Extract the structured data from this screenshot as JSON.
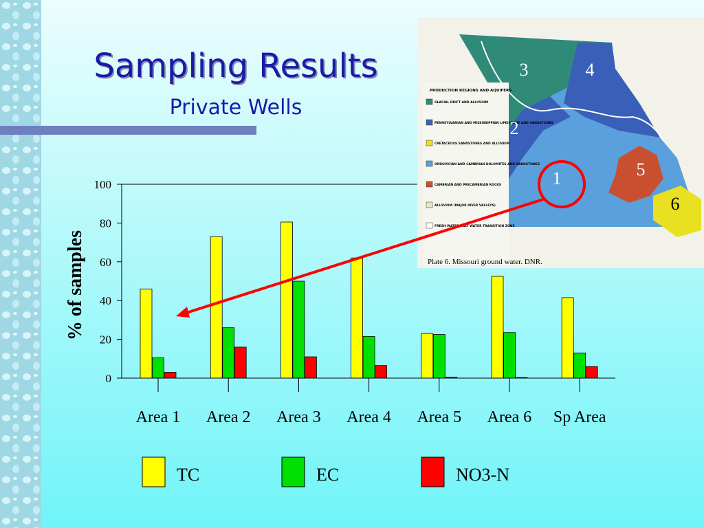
{
  "chart_data": {
    "type": "bar",
    "title": "Sampling Results",
    "subtitle": "Private Wells",
    "y_label": "% of samples",
    "categories": [
      "Area 1",
      "Area 2",
      "Area 3",
      "Area 4",
      "Area 5",
      "Area 6",
      "Sp Area"
    ],
    "series": [
      {
        "name": "TC",
        "color": "#ffff00",
        "values": [
          46,
          73,
          80.5,
          62,
          23,
          52.5,
          41.5
        ]
      },
      {
        "name": "EC",
        "color": "#00e000",
        "values": [
          10.5,
          26,
          50,
          21.5,
          22.5,
          23.5,
          13
        ]
      },
      {
        "name": "NO3-N",
        "color": "#ff0000",
        "values": [
          3,
          16,
          11,
          6.5,
          0.5,
          0.3,
          6
        ]
      }
    ],
    "ylim": [
      0,
      100
    ],
    "yticks": [
      0,
      20,
      40,
      60,
      80,
      100
    ],
    "grid": false
  },
  "map": {
    "legend_title": "PRODUCTION REGIONS AND AQUIFERS",
    "legend_items": [
      {
        "label": "GLACIAL DRIFT AND ALLUVIUM",
        "color": "#2f8a78"
      },
      {
        "label": "PENNSYLVANIAN AND MISSISSIPPIAN LIMESTONE AND SANDSTONES",
        "color": "#3a5fb8"
      },
      {
        "label": "CRETACEOUS SANDSTONES AND ALLUVIUM",
        "color": "#e8e020"
      },
      {
        "label": "ORDOVICIAN AND CAMBRIAN DOLOMITES AND SANDSTONES",
        "color": "#5aa0dc"
      },
      {
        "label": "CAMBRIAN AND PRECAMBRIAN ROCKS",
        "color": "#c85030"
      },
      {
        "label": "ALLUVIUM (MAJOR RIVER VALLEYS)",
        "color": "#e8e8c8"
      },
      {
        "label": "FRESH WATER-SALT WATER TRANSITION ZONE",
        "color": "#ffffff"
      }
    ],
    "region_labels": [
      "3",
      "4",
      "2",
      "1",
      "5",
      "6"
    ],
    "caption": "Plate 6. Missouri ground water. DNR."
  }
}
